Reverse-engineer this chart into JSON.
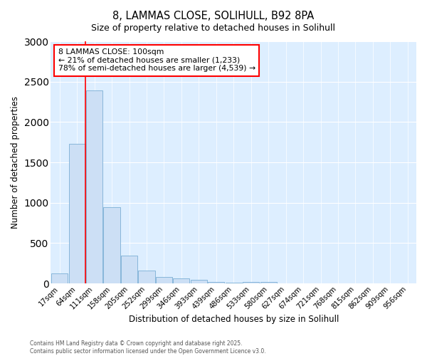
{
  "title1": "8, LAMMAS CLOSE, SOLIHULL, B92 8PA",
  "title2": "Size of property relative to detached houses in Solihull",
  "xlabel": "Distribution of detached houses by size in Solihull",
  "ylabel": "Number of detached properties",
  "categories": [
    "17sqm",
    "64sqm",
    "111sqm",
    "158sqm",
    "205sqm",
    "252sqm",
    "299sqm",
    "346sqm",
    "393sqm",
    "439sqm",
    "486sqm",
    "533sqm",
    "580sqm",
    "627sqm",
    "674sqm",
    "721sqm",
    "768sqm",
    "815sqm",
    "862sqm",
    "909sqm",
    "956sqm"
  ],
  "values": [
    120,
    1730,
    2390,
    940,
    345,
    160,
    82,
    58,
    44,
    18,
    13,
    22,
    18,
    0,
    0,
    0,
    0,
    0,
    0,
    0,
    0
  ],
  "bar_color": "#ccdff5",
  "bar_edge_color": "#7bafd4",
  "red_line_index": 2,
  "annotation_title": "8 LAMMAS CLOSE: 100sqm",
  "annotation_line1": "← 21% of detached houses are smaller (1,233)",
  "annotation_line2": "78% of semi-detached houses are larger (4,539) →",
  "ylim": [
    0,
    3000
  ],
  "yticks": [
    0,
    500,
    1000,
    1500,
    2000,
    2500,
    3000
  ],
  "footnote1": "Contains HM Land Registry data © Crown copyright and database right 2025.",
  "footnote2": "Contains public sector information licensed under the Open Government Licence v3.0.",
  "bg_color": "#ffffff",
  "plot_bg_color": "#ddeeff"
}
